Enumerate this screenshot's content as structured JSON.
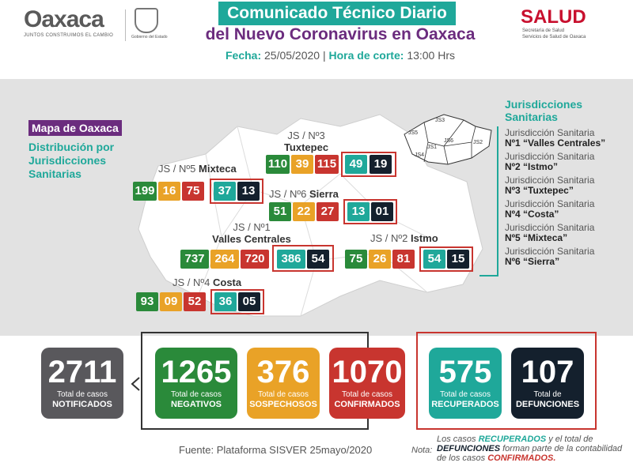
{
  "header": {
    "logo_text": "Oaxaca",
    "logo_tagline": "JUNTOS CONSTRUIMOS EL CAMBIO",
    "crest_label": "Gobierno del Estado",
    "title_line1": "Comunicado Técnico Diario",
    "title_line2": "del Nuevo Coronavirus en Oaxaca",
    "date_label": "Fecha:",
    "date_value": "25/05/2020",
    "cutoff_label": "Hora de corte:",
    "cutoff_value": "13:00 Hrs",
    "salud_logo": "SALUD",
    "salud_sub1": "Secretaría de Salud",
    "salud_sub2": "Servicios de Salud de Oaxaca"
  },
  "map": {
    "badge": "Mapa de Oaxaca",
    "subtitle": "Distribución por Jurisdicciones Sanitarias",
    "map_color": "#ffffff",
    "panel_color": "#e2e2e2"
  },
  "legend": {
    "title": "Jurisdicciones Sanitarias",
    "mini_labels": [
      "JS5",
      "JS3",
      "JS1",
      "JS6",
      "JS2",
      "JS4"
    ],
    "items": [
      {
        "line1": "Jurisdicción Sanitaria",
        "line2": "Nº1 “Valles Centrales”"
      },
      {
        "line1": "Jurisdicción Sanitaria",
        "line2": "Nº2 “Istmo”"
      },
      {
        "line1": "Jurisdicción Sanitaria",
        "line2": "Nº3 “Tuxtepec”"
      },
      {
        "line1": "Jurisdicción Sanitaria",
        "line2": "Nº4 “Costa”"
      },
      {
        "line1": "Jurisdicción Sanitaria",
        "line2": "Nº5 “Mixteca”"
      },
      {
        "line1": "Jurisdicción Sanitaria",
        "line2": "Nº6 “Sierra”"
      }
    ]
  },
  "jurisdictions": {
    "tuxtepec": {
      "line1": "JS / Nº3",
      "line2": "Tuxtepec",
      "negativos": "110",
      "sospechosos": "39",
      "confirmados": "115",
      "recuperados": "49",
      "defunciones": "19"
    },
    "mixteca": {
      "line1": "JS / Nº5",
      "line2": "Mixteca",
      "negativos": "199",
      "sospechosos": "16",
      "confirmados": "75",
      "recuperados": "37",
      "defunciones": "13"
    },
    "sierra": {
      "line1": "JS / Nº6",
      "line2": "Sierra",
      "negativos": "51",
      "sospechosos": "22",
      "confirmados": "27",
      "recuperados": "13",
      "defunciones": "01"
    },
    "valles": {
      "line1": "JS / Nº1",
      "line2": "Valles Centrales",
      "negativos": "737",
      "sospechosos": "264",
      "confirmados": "720",
      "recuperados": "386",
      "defunciones": "54"
    },
    "istmo": {
      "line1": "JS / Nº2",
      "line2": "Istmo",
      "negativos": "75",
      "sospechosos": "26",
      "confirmados": "81",
      "recuperados": "54",
      "defunciones": "15"
    },
    "costa": {
      "line1": "JS / Nº4",
      "line2": "Costa",
      "negativos": "93",
      "sospechosos": "09",
      "confirmados": "52",
      "recuperados": "36",
      "defunciones": "05"
    }
  },
  "totals": {
    "notificados": {
      "value": "2711",
      "label": "Total de casos",
      "label_bold": "NOTIFICADOS"
    },
    "negativos": {
      "value": "1265",
      "label": "Total de casos",
      "label_bold": "NEGATIVOS"
    },
    "sospechosos": {
      "value": "376",
      "label": "Total de casos",
      "label_bold": "SOSPECHOSOS"
    },
    "confirmados": {
      "value": "1070",
      "label": "Total de casos",
      "label_bold": "CONFIRMADOS"
    },
    "recuperados": {
      "value": "575",
      "label": "Total de casos",
      "label_bold": "RECUPERADOS"
    },
    "defunciones": {
      "value": "107",
      "label": "Total de",
      "label_bold": "DEFUNCIONES"
    }
  },
  "colors": {
    "negativos": "#2a8a3a",
    "sospechosos": "#e9a227",
    "confirmados": "#c8352f",
    "recuperados": "#1fa89a",
    "defunciones": "#14202d",
    "notificados": "#59585c",
    "accent_purple": "#6b2c7e"
  },
  "footer": {
    "source": "Fuente: Plataforma SISVER 25mayo/2020",
    "note_label": "Nota:",
    "note_pre": "Los casos",
    "note_recuperados": "RECUPERADOS",
    "note_mid": "y el total de",
    "note_defunciones": "DEFUNCIONES",
    "note_post": "forman parte de la contabilidad de los casos",
    "note_confirmados": "CONFIRMADOS."
  }
}
